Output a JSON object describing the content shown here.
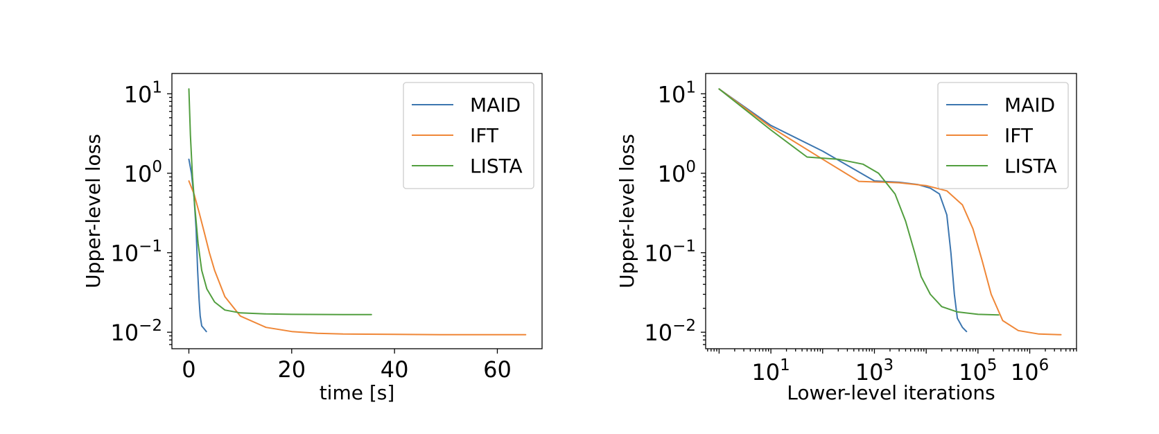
{
  "colors": {
    "MAID": "#3b75af",
    "IFT": "#ef8636",
    "LISTA": "#519e3e"
  },
  "chart_data": [
    {
      "type": "line",
      "xlabel": "time [s]",
      "ylabel": "Upper-level loss",
      "xscale": "linear",
      "yscale": "log",
      "xlim": [
        -3.3,
        68.7
      ],
      "ylim": [
        0.0062,
        18
      ],
      "xticks": [
        0,
        20,
        40,
        60
      ],
      "xtick_labels": [
        "0",
        "20",
        "40",
        "60"
      ],
      "ytick_exponents": [
        -2,
        -1,
        0,
        1
      ],
      "legend_position": "top-right",
      "grid": false,
      "series": [
        {
          "name": "MAID",
          "x": [
            0,
            0.5,
            1,
            1.4,
            1.7,
            2,
            2.2,
            2.5,
            3,
            3.4
          ],
          "y": [
            1.5,
            1.0,
            0.5,
            0.2,
            0.06,
            0.025,
            0.016,
            0.012,
            0.011,
            0.0102
          ]
        },
        {
          "name": "IFT",
          "x": [
            0,
            1,
            2,
            3,
            4,
            5,
            7,
            10,
            15,
            20,
            25,
            30,
            40,
            50,
            65.5
          ],
          "y": [
            0.8,
            0.55,
            0.32,
            0.18,
            0.1,
            0.06,
            0.028,
            0.016,
            0.0115,
            0.0102,
            0.0097,
            0.0095,
            0.0094,
            0.0093,
            0.0093
          ]
        },
        {
          "name": "LISTA",
          "x": [
            0,
            0.3,
            0.7,
            1.2,
            1.8,
            2.5,
            3.5,
            5,
            7,
            10,
            15,
            20,
            30,
            35.5
          ],
          "y": [
            11.5,
            3.0,
            0.9,
            0.35,
            0.13,
            0.06,
            0.035,
            0.024,
            0.019,
            0.0175,
            0.017,
            0.0168,
            0.0167,
            0.0167
          ]
        }
      ]
    },
    {
      "type": "line",
      "xlabel": "Lower-level iterations",
      "ylabel": "Upper-level loss",
      "xscale": "log",
      "yscale": "log",
      "xlim": [
        0.55,
        8000000
      ],
      "ylim": [
        0.0062,
        18
      ],
      "xtick_exponents": [
        1,
        3,
        5,
        6
      ],
      "ytick_exponents": [
        -2,
        -1,
        0,
        1
      ],
      "legend_position": "top-right",
      "grid": false,
      "series": [
        {
          "name": "MAID",
          "x": [
            1,
            10,
            100,
            1000,
            3000,
            7000,
            12000,
            18000,
            25000,
            30000,
            35000,
            40000,
            50000,
            60000
          ],
          "y": [
            11.5,
            4.0,
            1.9,
            0.8,
            0.77,
            0.72,
            0.65,
            0.55,
            0.3,
            0.1,
            0.03,
            0.015,
            0.0115,
            0.0102
          ]
        },
        {
          "name": "IFT",
          "x": [
            1,
            10,
            100,
            500,
            3000,
            10000,
            25000,
            50000,
            80000,
            120000,
            180000,
            300000,
            600000,
            1500000,
            4000000
          ],
          "y": [
            11.5,
            3.8,
            1.5,
            0.79,
            0.76,
            0.7,
            0.6,
            0.4,
            0.2,
            0.08,
            0.03,
            0.014,
            0.0105,
            0.0095,
            0.0093
          ]
        },
        {
          "name": "LISTA",
          "x": [
            1,
            10,
            50,
            200,
            600,
            1200,
            2500,
            4000,
            6000,
            8000,
            12000,
            20000,
            40000,
            100000,
            250000
          ],
          "y": [
            11.5,
            3.5,
            1.6,
            1.5,
            1.3,
            1.0,
            0.55,
            0.25,
            0.1,
            0.05,
            0.03,
            0.021,
            0.018,
            0.0168,
            0.0165
          ]
        }
      ]
    }
  ]
}
